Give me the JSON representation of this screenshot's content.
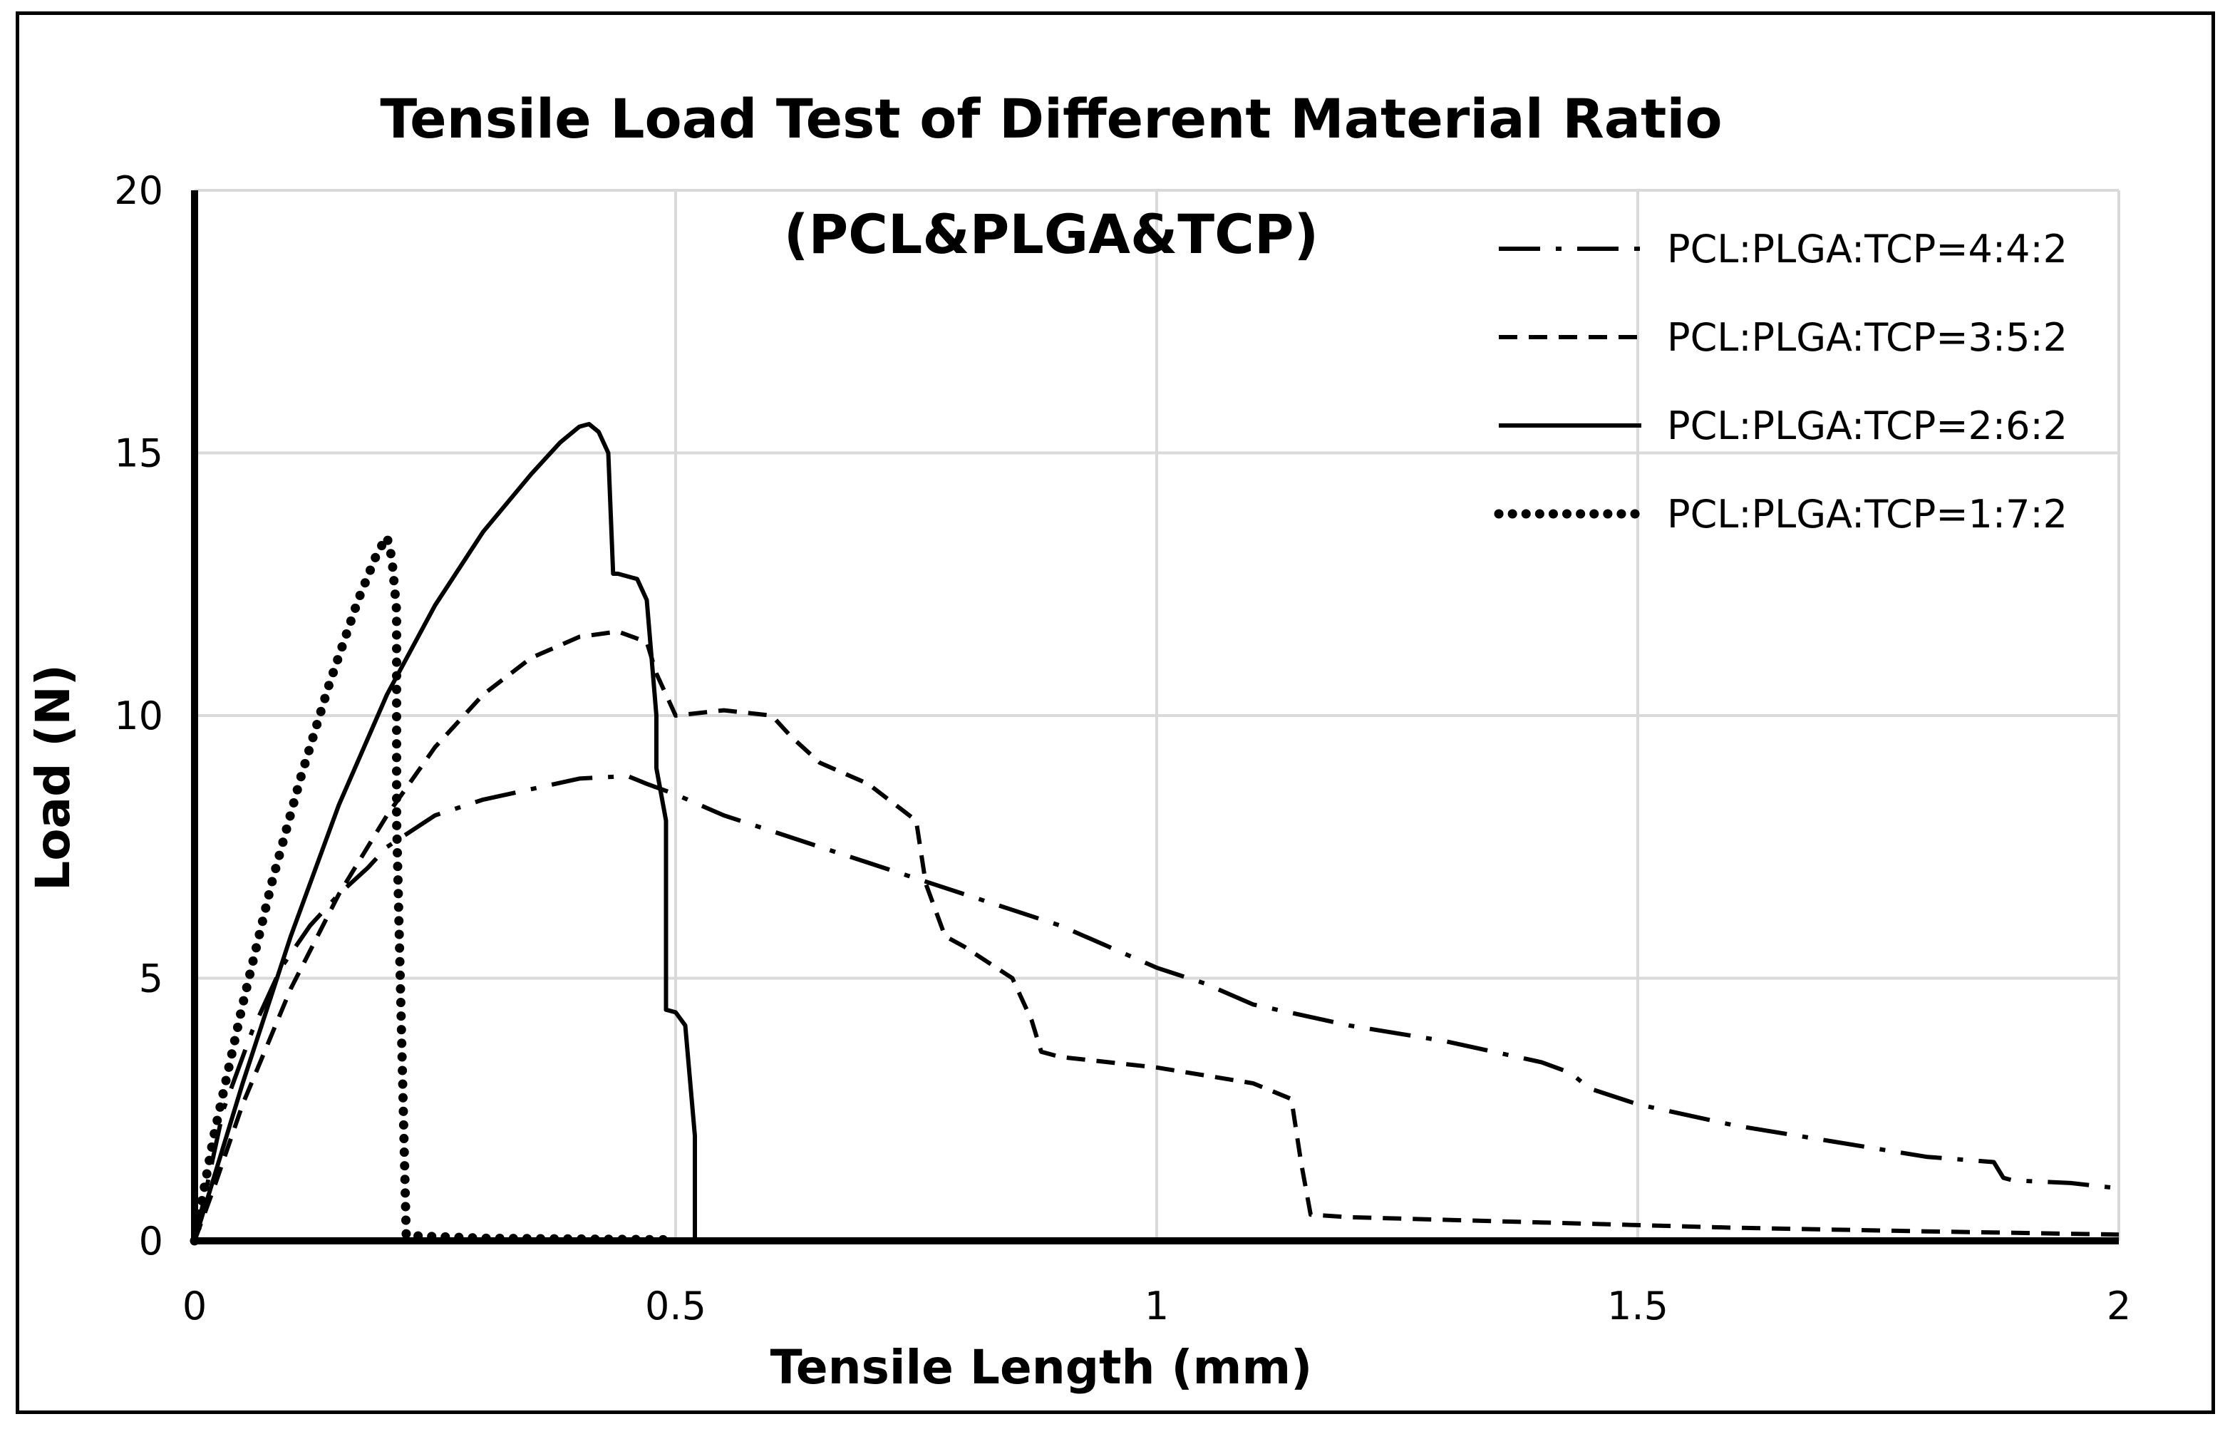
{
  "chart_data": {
    "type": "line",
    "title": "Tensile Load Test of Different Material Ratio",
    "subtitle": "(PCL&PLGA&TCP)",
    "xlabel": "Tensile Length (mm)",
    "ylabel": "Load (N)",
    "xlim": [
      0,
      2
    ],
    "ylim": [
      0,
      20
    ],
    "xticks": [
      0,
      0.5,
      1,
      1.5,
      2
    ],
    "xtick_labels": [
      "0",
      "0.5",
      "1",
      "1.5",
      "2"
    ],
    "yticks": [
      0,
      5,
      10,
      15,
      20
    ],
    "ytick_labels": [
      "0",
      "5",
      "10",
      "15",
      "20"
    ],
    "grid": true,
    "legend_position": "top-right",
    "series": [
      {
        "name": "PCL:PLGA:TCP=4:4:2",
        "style": "dashdot",
        "color": "#000000",
        "x": [
          0,
          0.01,
          0.03,
          0.06,
          0.09,
          0.12,
          0.15,
          0.18,
          0.2,
          0.25,
          0.3,
          0.35,
          0.4,
          0.45,
          0.47,
          0.5,
          0.55,
          0.6,
          0.65,
          0.7,
          0.75,
          0.8,
          0.85,
          0.9,
          0.95,
          1.0,
          1.05,
          1.1,
          1.2,
          1.3,
          1.4,
          1.43,
          1.45,
          1.5,
          1.6,
          1.7,
          1.8,
          1.87,
          1.88,
          1.89,
          1.95,
          2.0
        ],
        "values": [
          0,
          0.8,
          2.5,
          4.0,
          5.2,
          6.0,
          6.6,
          7.1,
          7.5,
          8.1,
          8.4,
          8.6,
          8.8,
          8.85,
          8.7,
          8.5,
          8.1,
          7.8,
          7.5,
          7.2,
          6.9,
          6.6,
          6.3,
          6.0,
          5.6,
          5.2,
          4.9,
          4.5,
          4.1,
          3.8,
          3.4,
          3.2,
          2.9,
          2.6,
          2.2,
          1.9,
          1.6,
          1.5,
          1.2,
          1.15,
          1.1,
          1.0
        ]
      },
      {
        "name": "PCL:PLGA:TCP=3:5:2",
        "style": "dashed",
        "color": "#000000",
        "x": [
          0,
          0.02,
          0.05,
          0.1,
          0.15,
          0.2,
          0.25,
          0.3,
          0.35,
          0.4,
          0.44,
          0.47,
          0.48,
          0.5,
          0.55,
          0.6,
          0.62,
          0.65,
          0.7,
          0.75,
          0.76,
          0.78,
          0.8,
          0.85,
          0.87,
          0.88,
          0.9,
          1.0,
          1.1,
          1.14,
          1.15,
          1.16,
          1.2,
          1.4,
          1.6,
          1.8,
          2.0
        ],
        "values": [
          0,
          1.0,
          2.6,
          4.8,
          6.6,
          8.1,
          9.4,
          10.4,
          11.1,
          11.5,
          11.6,
          11.4,
          10.8,
          10.0,
          10.1,
          10.0,
          9.6,
          9.1,
          8.7,
          8.0,
          6.8,
          5.8,
          5.6,
          5.0,
          4.2,
          3.6,
          3.5,
          3.3,
          3.0,
          2.7,
          1.5,
          0.5,
          0.45,
          0.35,
          0.25,
          0.18,
          0.12
        ]
      },
      {
        "name": "PCL:PLGA:TCP=2:6:2",
        "style": "solid",
        "color": "#000000",
        "x": [
          0,
          0.02,
          0.05,
          0.1,
          0.15,
          0.2,
          0.25,
          0.3,
          0.35,
          0.38,
          0.4,
          0.41,
          0.42,
          0.43,
          0.435,
          0.44,
          0.46,
          0.47,
          0.48,
          0.48,
          0.49,
          0.49,
          0.5,
          0.51,
          0.52,
          0.52
        ],
        "values": [
          0,
          1.2,
          3.0,
          5.8,
          8.3,
          10.4,
          12.1,
          13.5,
          14.6,
          15.2,
          15.5,
          15.55,
          15.4,
          15.0,
          12.7,
          12.7,
          12.6,
          12.2,
          10.0,
          9.0,
          8.0,
          4.4,
          4.35,
          4.1,
          2.0,
          0
        ]
      },
      {
        "name": "PCL:PLGA:TCP=1:7:2",
        "style": "dotted",
        "color": "#000000",
        "x": [
          0,
          0.02,
          0.05,
          0.08,
          0.11,
          0.14,
          0.17,
          0.19,
          0.2,
          0.205,
          0.21,
          0.21,
          0.215,
          0.22,
          0.3,
          0.5
        ],
        "values": [
          0,
          2.0,
          4.5,
          6.8,
          8.8,
          10.6,
          12.2,
          13.1,
          13.4,
          13.0,
          12.0,
          8.0,
          4.0,
          0.1,
          0.05,
          0.02
        ]
      }
    ]
  }
}
